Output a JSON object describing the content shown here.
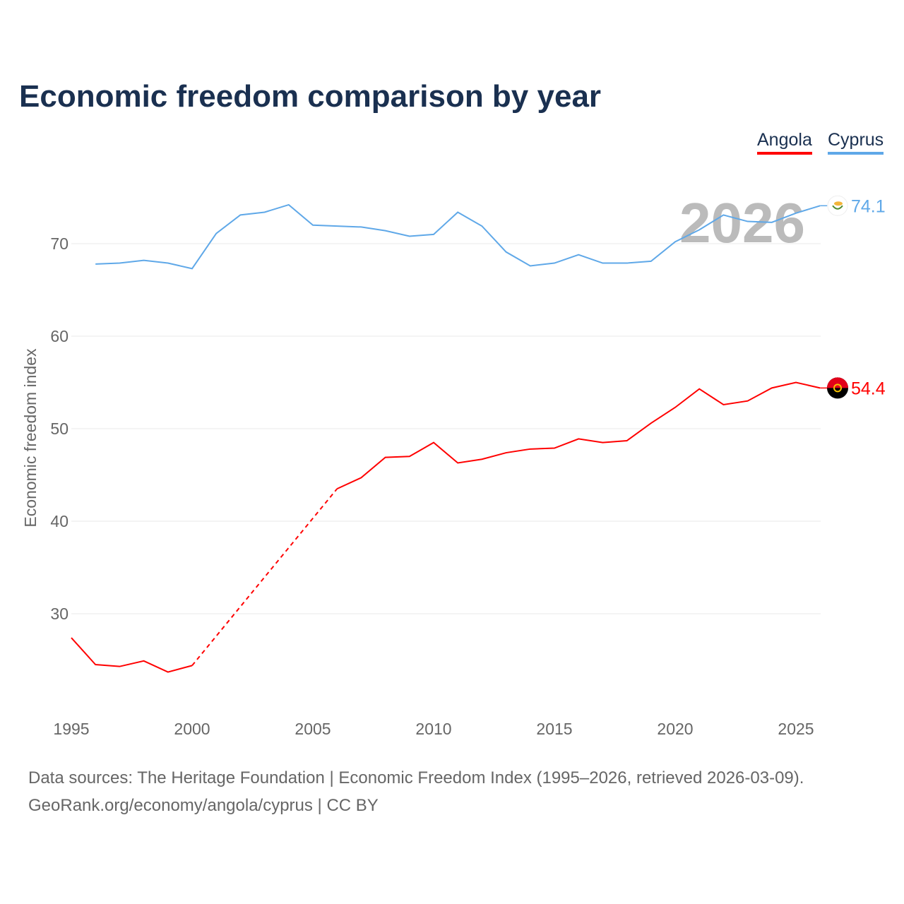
{
  "chart_data": {
    "type": "line",
    "title": "Economic freedom comparison by year",
    "ylabel": "Economic freedom index",
    "xlabel": "",
    "xlim": [
      1995,
      2026
    ],
    "ylim": [
      20,
      78
    ],
    "yticks": [
      30,
      40,
      50,
      60,
      70
    ],
    "xticks": [
      1995,
      2000,
      2005,
      2010,
      2015,
      2020,
      2025
    ],
    "grid": true,
    "legend_position": "top-right",
    "year_watermark": "2026",
    "series": [
      {
        "name": "Angola",
        "color": "#ff0000",
        "end_label": "54.4",
        "x": [
          1995,
          1996,
          1997,
          1998,
          1999,
          2000,
          2006,
          2007,
          2008,
          2009,
          2010,
          2011,
          2012,
          2013,
          2014,
          2015,
          2016,
          2017,
          2018,
          2019,
          2020,
          2021,
          2022,
          2023,
          2024,
          2025,
          2026
        ],
        "values": [
          27.4,
          24.5,
          24.3,
          24.9,
          23.7,
          24.4,
          43.5,
          44.7,
          46.9,
          47.0,
          48.5,
          46.3,
          46.7,
          47.4,
          47.8,
          47.9,
          48.9,
          48.5,
          48.7,
          50.6,
          52.3,
          54.3,
          52.6,
          53.0,
          54.4,
          55.0,
          54.4
        ],
        "gap": [
          2000,
          2006
        ]
      },
      {
        "name": "Cyprus",
        "color": "#5fa8e8",
        "end_label": "74.1",
        "x": [
          1996,
          1997,
          1998,
          1999,
          2000,
          2001,
          2002,
          2003,
          2004,
          2005,
          2006,
          2007,
          2008,
          2009,
          2010,
          2011,
          2012,
          2013,
          2014,
          2015,
          2016,
          2017,
          2018,
          2019,
          2020,
          2021,
          2022,
          2023,
          2024,
          2025,
          2026
        ],
        "values": [
          67.8,
          67.9,
          68.2,
          67.9,
          67.3,
          71.1,
          73.1,
          73.4,
          74.2,
          72.0,
          71.9,
          71.8,
          71.4,
          70.8,
          71.0,
          73.4,
          71.9,
          69.1,
          67.6,
          67.9,
          68.8,
          67.9,
          67.9,
          68.1,
          70.2,
          71.5,
          73.1,
          72.4,
          72.3,
          73.3,
          74.1
        ]
      }
    ]
  },
  "footer": {
    "line1": "Data sources: The Heritage Foundation | Economic Freedom Index (1995–2026, retrieved 2026-03-09).",
    "line2": "GeoRank.org/economy/angola/cyprus | CC BY"
  }
}
